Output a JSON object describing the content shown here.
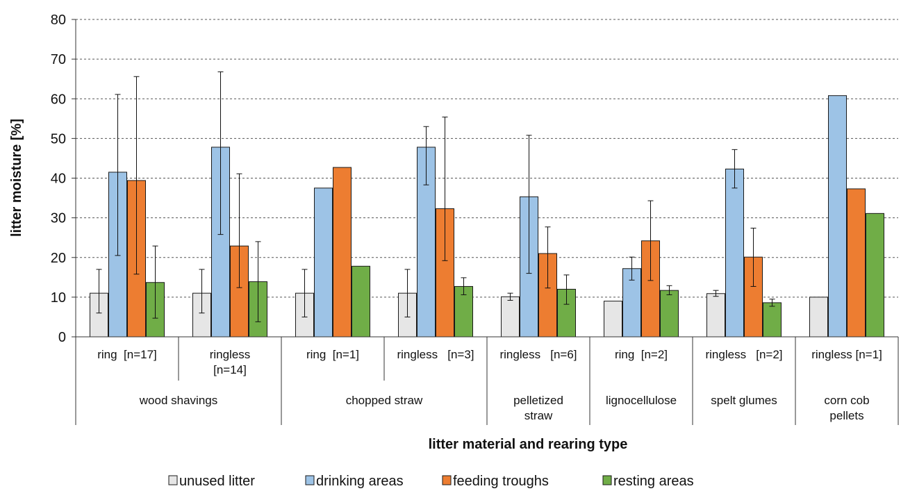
{
  "chart_data": {
    "type": "bar",
    "title": "",
    "ylabel": "litter moisture [%]",
    "xlabel": "litter material and rearing type",
    "ylim": [
      0,
      80
    ],
    "yticks": [
      "0",
      "10",
      "20",
      "30",
      "40",
      "50",
      "60",
      "70",
      "80"
    ],
    "grid": true,
    "legend_position": "bottom",
    "categories": [
      "ring  [n=17]",
      "ringless [n=14]",
      "ring  [n=1]",
      "ringless   [n=3]",
      "ringless   [n=6]",
      "ring  [n=2]",
      "ringless   [n=2]",
      "ringless [n=1]"
    ],
    "category_lines": [
      [
        "ring  [n=17]"
      ],
      [
        "ringless",
        "[n=14]"
      ],
      [
        "ring  [n=1]"
      ],
      [
        "ringless   [n=3]"
      ],
      [
        "ringless   [n=6]"
      ],
      [
        "ring  [n=2]"
      ],
      [
        "ringless   [n=2]"
      ],
      [
        "ringless [n=1]"
      ]
    ],
    "groups": [
      {
        "label": "wood shavings",
        "lines": [
          "wood shavings"
        ],
        "span": [
          0,
          1
        ]
      },
      {
        "label": "chopped straw",
        "lines": [
          "chopped straw"
        ],
        "span": [
          2,
          3
        ]
      },
      {
        "label": "pelletized straw",
        "lines": [
          "pelletized",
          "straw"
        ],
        "span": [
          4,
          4
        ]
      },
      {
        "label": "lignocellulose",
        "lines": [
          "lignocellulose"
        ],
        "span": [
          5,
          5
        ]
      },
      {
        "label": "spelt glumes",
        "lines": [
          "spelt glumes"
        ],
        "span": [
          6,
          6
        ]
      },
      {
        "label": "corn cob pellets",
        "lines": [
          "corn cob",
          "pellets"
        ],
        "span": [
          7,
          7
        ]
      }
    ],
    "series": [
      {
        "name": "unused litter",
        "color": "#e6e6e6",
        "values": [
          11,
          11,
          11,
          11,
          10.1,
          9,
          10.9,
          10
        ],
        "error_low": [
          6,
          6,
          5,
          5,
          9.2,
          null,
          10.2,
          null
        ],
        "error_high": [
          17,
          17,
          17,
          17,
          11,
          null,
          11.7,
          null
        ]
      },
      {
        "name": "drinking areas",
        "color": "#9dc3e6",
        "values": [
          41.5,
          47.8,
          37.5,
          47.8,
          35.3,
          17.2,
          42.3,
          60.8
        ],
        "error_low": [
          20.5,
          25.8,
          null,
          38.3,
          16,
          14.3,
          37.5,
          null
        ],
        "error_high": [
          61.1,
          66.8,
          null,
          53,
          50.8,
          20.1,
          47.2,
          null
        ]
      },
      {
        "name": "feeding troughs",
        "color": "#ed7d31",
        "values": [
          39.4,
          22.9,
          42.7,
          32.3,
          21,
          24.2,
          20.1,
          37.3
        ],
        "error_low": [
          15.8,
          12.4,
          null,
          19.2,
          12.3,
          14.2,
          12.7,
          null
        ],
        "error_high": [
          65.6,
          41.1,
          null,
          55.4,
          27.7,
          34.3,
          27.4,
          null
        ]
      },
      {
        "name": "resting areas",
        "color": "#70ad47",
        "values": [
          13.7,
          13.9,
          17.8,
          12.7,
          12,
          11.7,
          8.6,
          31.1
        ],
        "error_low": [
          4.7,
          3.8,
          null,
          10.6,
          8.2,
          10.6,
          7.7,
          null
        ],
        "error_high": [
          22.9,
          24,
          null,
          14.9,
          15.6,
          12.9,
          9.5,
          null
        ]
      }
    ]
  }
}
